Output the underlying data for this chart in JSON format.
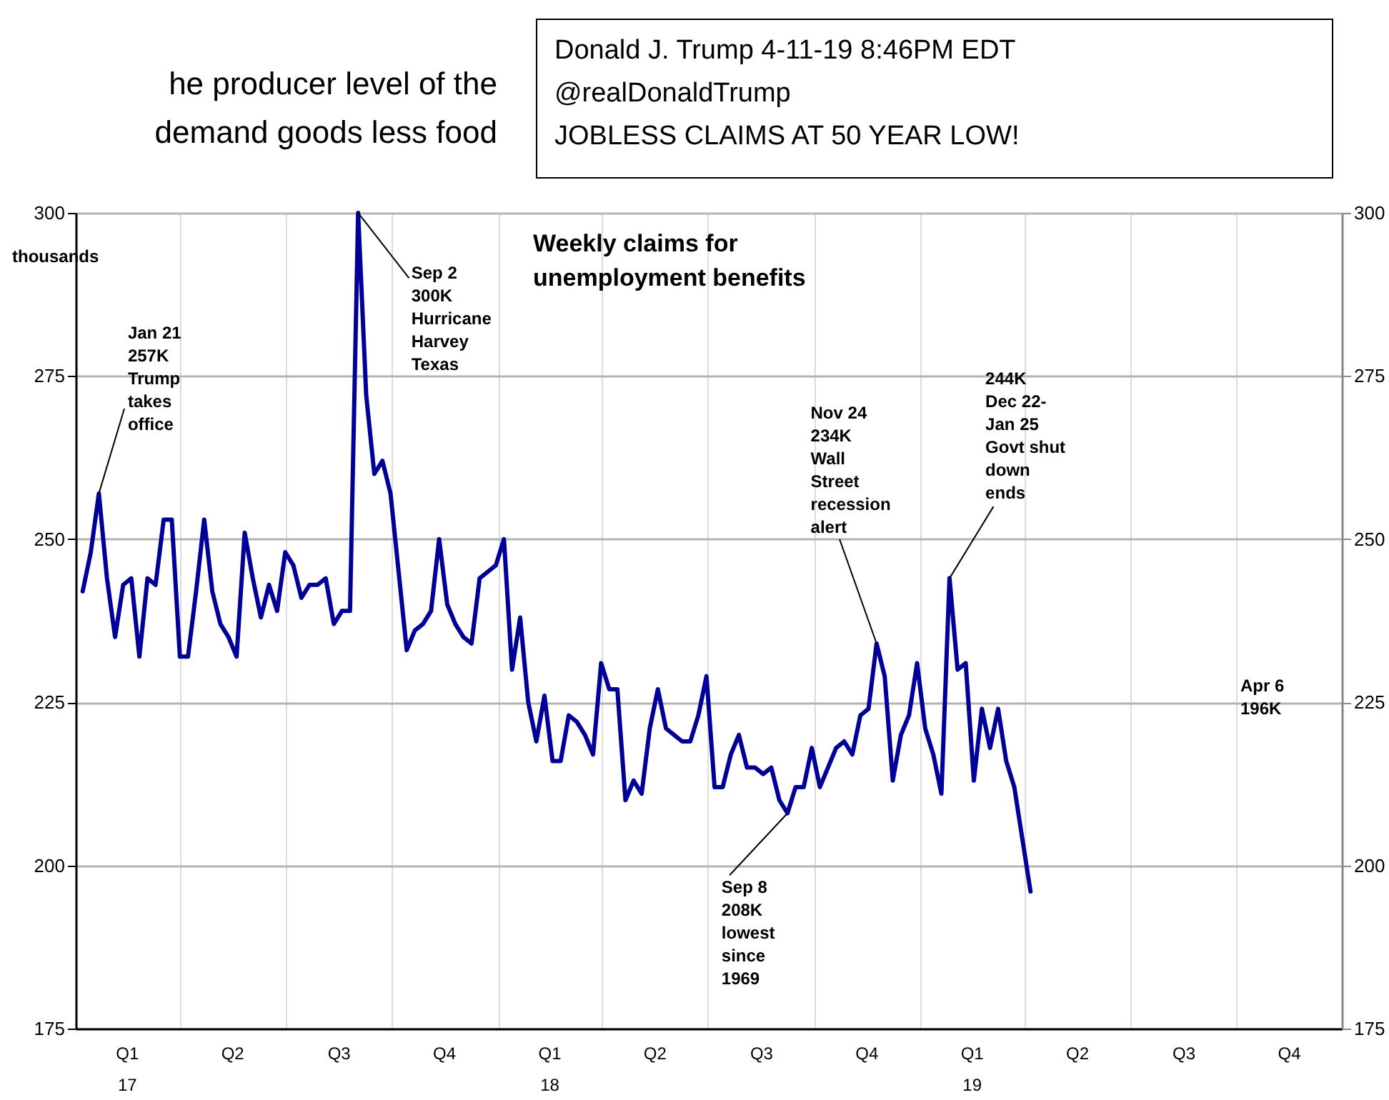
{
  "chart_data": {
    "type": "line",
    "title": "Weekly claims for\nunemployment benefits",
    "ylabel": "thousands",
    "x": [
      "2017-01-07",
      "2017-01-14",
      "2017-01-21",
      "2017-01-28",
      "2017-02-04",
      "2017-02-11",
      "2017-02-18",
      "2017-02-25",
      "2017-03-04",
      "2017-03-11",
      "2017-03-18",
      "2017-03-25",
      "2017-04-01",
      "2017-04-08",
      "2017-04-15",
      "2017-04-22",
      "2017-04-29",
      "2017-05-06",
      "2017-05-13",
      "2017-05-20",
      "2017-05-27",
      "2017-06-03",
      "2017-06-10",
      "2017-06-17",
      "2017-06-24",
      "2017-07-01",
      "2017-07-08",
      "2017-07-15",
      "2017-07-22",
      "2017-07-29",
      "2017-08-05",
      "2017-08-12",
      "2017-08-19",
      "2017-08-26",
      "2017-09-02",
      "2017-09-09",
      "2017-09-16",
      "2017-09-23",
      "2017-09-30",
      "2017-10-07",
      "2017-10-14",
      "2017-10-21",
      "2017-10-28",
      "2017-11-04",
      "2017-11-11",
      "2017-11-18",
      "2017-11-25",
      "2017-12-02",
      "2017-12-09",
      "2017-12-16",
      "2017-12-23",
      "2017-12-30",
      "2018-01-06",
      "2018-01-13",
      "2018-01-20",
      "2018-01-27",
      "2018-02-03",
      "2018-02-10",
      "2018-02-17",
      "2018-02-24",
      "2018-03-03",
      "2018-03-10",
      "2018-03-17",
      "2018-03-24",
      "2018-03-31",
      "2018-04-07",
      "2018-04-14",
      "2018-04-21",
      "2018-04-28",
      "2018-05-05",
      "2018-05-12",
      "2018-05-19",
      "2018-05-26",
      "2018-06-02",
      "2018-06-09",
      "2018-06-16",
      "2018-06-23",
      "2018-06-30",
      "2018-07-07",
      "2018-07-14",
      "2018-07-21",
      "2018-07-28",
      "2018-08-04",
      "2018-08-11",
      "2018-08-18",
      "2018-08-25",
      "2018-09-01",
      "2018-09-08",
      "2018-09-15",
      "2018-09-22",
      "2018-09-29",
      "2018-10-06",
      "2018-10-13",
      "2018-10-20",
      "2018-10-27",
      "2018-11-03",
      "2018-11-10",
      "2018-11-17",
      "2018-11-24",
      "2018-12-01",
      "2018-12-08",
      "2018-12-15",
      "2018-12-22",
      "2018-12-29",
      "2019-01-05",
      "2019-01-12",
      "2019-01-19",
      "2019-01-26",
      "2019-02-02",
      "2019-02-09",
      "2019-02-16",
      "2019-02-23",
      "2019-03-02",
      "2019-03-09",
      "2019-03-16",
      "2019-03-23",
      "2019-03-30",
      "2019-04-06"
    ],
    "series": [
      {
        "color": "#000099",
        "values": [
          242,
          248,
          257,
          244,
          235,
          243,
          244,
          232,
          244,
          243,
          253,
          253,
          232,
          232,
          242,
          253,
          242,
          237,
          235,
          232,
          251,
          244,
          238,
          243,
          239,
          248,
          246,
          241,
          243,
          243,
          244,
          237,
          239,
          239,
          300,
          272,
          260,
          262,
          257,
          245,
          233,
          236,
          237,
          239,
          250,
          240,
          237,
          235,
          234,
          244,
          245,
          246,
          250,
          230,
          238,
          225,
          219,
          226,
          216,
          216,
          223,
          222,
          220,
          217,
          231,
          227,
          227,
          210,
          213,
          211,
          221,
          227,
          221,
          220,
          219,
          219,
          223,
          229,
          212,
          212,
          217,
          220,
          215,
          215,
          214,
          215,
          210,
          208,
          212,
          212,
          218,
          212,
          215,
          218,
          219,
          217,
          223,
          224,
          234,
          229,
          213,
          220,
          223,
          231,
          221,
          217,
          211,
          244,
          230,
          231,
          213,
          224,
          218,
          224,
          216,
          212,
          204,
          196
        ]
      }
    ],
    "xlim": [
      "2017-01-01",
      "2019-12-31"
    ],
    "xticks": [
      {
        "value": "2017-04-01",
        "label": null
      },
      {
        "value": "2017-07-01",
        "label": null
      },
      {
        "value": "2017-10-01",
        "label": null
      },
      {
        "value": "2018-01-01",
        "label": null
      },
      {
        "value": "2018-04-01",
        "label": null
      },
      {
        "value": "2018-07-01",
        "label": null
      },
      {
        "value": "2018-10-01",
        "label": null
      },
      {
        "value": "2019-01-01",
        "label": null
      },
      {
        "value": "2019-04-01",
        "label": null
      },
      {
        "value": "2019-07-01",
        "label": null
      },
      {
        "value": "2019-10-01",
        "label": null
      },
      {
        "value": "2017-02-14",
        "label": "Q1\n17"
      },
      {
        "value": "2017-05-16",
        "label": "Q2"
      },
      {
        "value": "2017-08-16",
        "label": "Q3"
      },
      {
        "value": "2017-11-15",
        "label": "Q4"
      },
      {
        "value": "2018-02-14",
        "label": "Q1\n18"
      },
      {
        "value": "2018-05-16",
        "label": "Q2"
      },
      {
        "value": "2018-08-16",
        "label": "Q3"
      },
      {
        "value": "2018-11-15",
        "label": "Q4"
      },
      {
        "value": "2019-02-14",
        "label": "Q1\n19"
      },
      {
        "value": "2019-05-16",
        "label": "Q2"
      },
      {
        "value": "2019-08-16",
        "label": "Q3"
      },
      {
        "value": "2019-11-15",
        "label": "Q4"
      }
    ],
    "ylim": [
      175,
      300
    ],
    "yticks": [
      175,
      200,
      225,
      250,
      275,
      300
    ],
    "y2lim": [
      175,
      300
    ],
    "y2ticks": [
      175,
      200,
      225,
      250,
      275,
      300
    ],
    "grid": true,
    "line_style": "solid",
    "annotations": [
      "he producer level of the\ndemand goods less food",
      "Donald J. Trump 4-11-19 8:46PM EDT\n@realDonaldTrump\nJOBLESS CLAIMS AT 50 YEAR LOW!",
      "Apr 6\n196K",
      {
        "text": "Jan 21\n257K\nTrump\ntakes\noffice",
        "x": "2017-01-21",
        "y": 257
      },
      {
        "text": "Sep 2\n300K\nHurricane\nHarvey\nTexas",
        "x": "2017-09-02",
        "y": 300
      },
      {
        "text": "Sep 8\n208K\nlowest\nsince\n1969",
        "x": "2018-09-08",
        "y": 208
      },
      {
        "text": "Nov 24\n234K\nWall\nStreet\nrecession\nalert",
        "x": "2018-11-24",
        "y": 234
      },
      {
        "text": "244K\nDec 22-\nJan 25\nGovt shut\ndown\nends",
        "x": "2019-01-26",
        "y": 244
      }
    ]
  }
}
